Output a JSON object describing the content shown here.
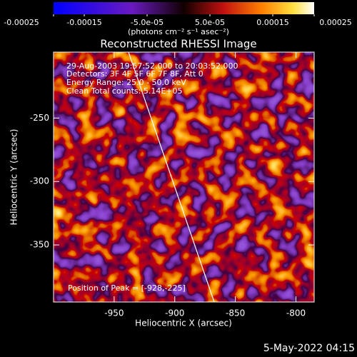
{
  "chart_data": {
    "type": "image",
    "title": "Reconstructed RHESSI Image",
    "colorbar": {
      "label": "(photons cm⁻² s⁻¹ asec⁻²)",
      "lim": [
        -0.00025,
        0.00025
      ],
      "ticks": [
        -0.00025,
        -0.00015,
        {
          "value": -5e-05,
          "label": "-5.0e-05"
        },
        {
          "value": 5e-05,
          "label": "5.0e-05"
        },
        0.00015,
        0.00025
      ]
    },
    "xlabel": "Heliocentric X (arcsec)",
    "ylabel": "Heliocentric Y (arcsec)",
    "xlim": [
      -1000,
      -785
    ],
    "ylim": [
      -395,
      -198
    ],
    "xticks": [
      -950,
      -900,
      -850,
      -800
    ],
    "yticks": [
      -350,
      -300,
      -250
    ],
    "annotations": [
      "29-Aug-2003 19:57:52.000 to 20:03:52.000",
      "Detectors: 3F 4F 5F 6F 7F 8F, Att 0",
      "Energy Range: 25.0 - 50.0 keV",
      "Clean    Total counts: 5.14E+05"
    ],
    "peak_label": "Position of Peak = [-928,-225]",
    "footer": "5-May-2022 04:15"
  }
}
